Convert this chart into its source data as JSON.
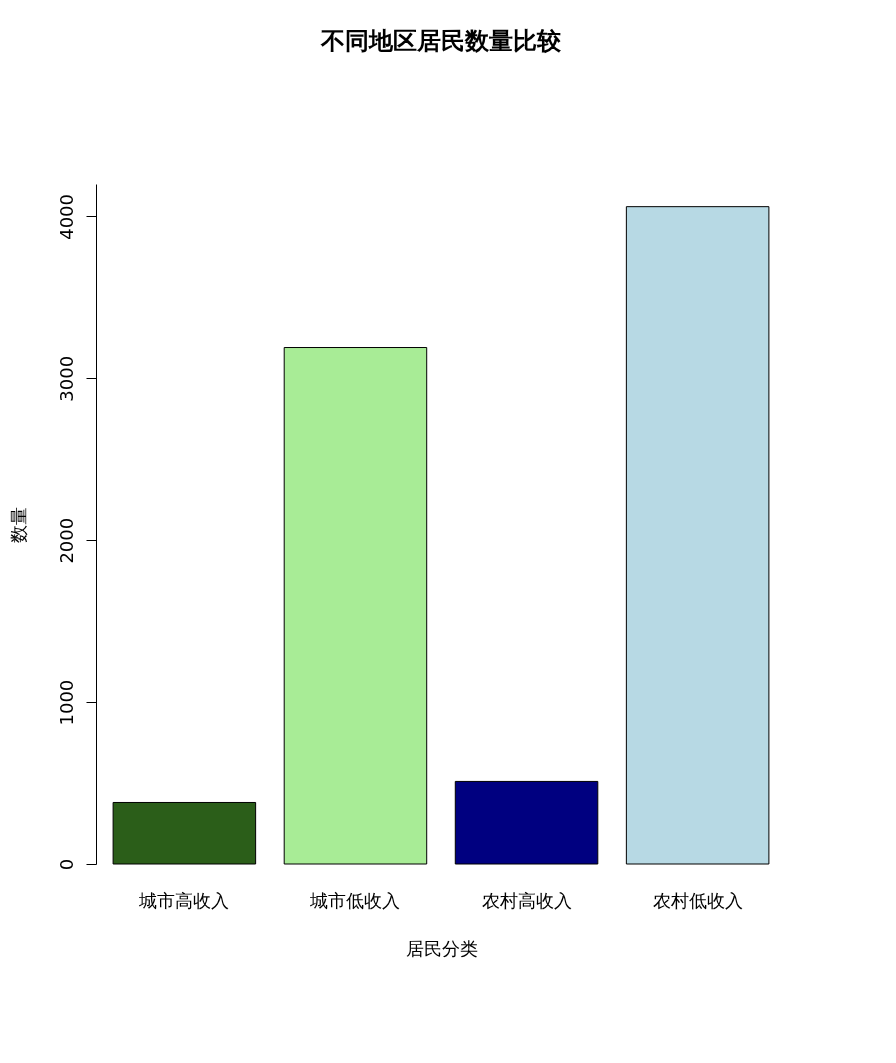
{
  "chart_data": {
    "type": "bar",
    "title": "不同地区居民数量比较",
    "xlabel": "居民分类",
    "ylabel": "数量",
    "categories": [
      "城市高收入",
      "城市低收入",
      "农村高收入",
      "农村低收入"
    ],
    "values": [
      380,
      3190,
      510,
      4060
    ],
    "colors": [
      "#2b5e19",
      "#a8ec96",
      "#000080",
      "#b7d9e4"
    ],
    "ylim": [
      0,
      4200
    ],
    "yticks": [
      0,
      1000,
      2000,
      3000,
      4000
    ],
    "grid": false
  }
}
